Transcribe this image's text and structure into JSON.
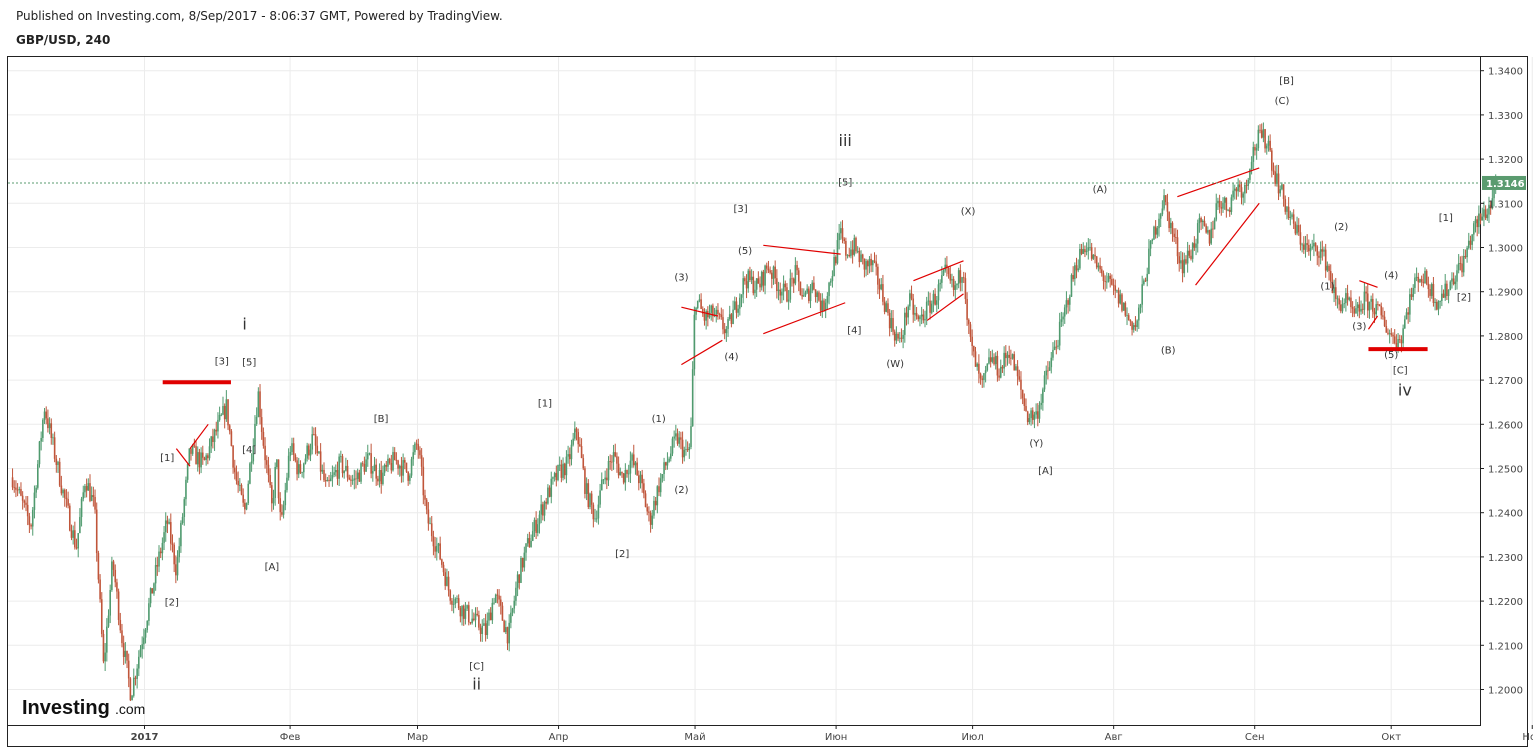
{
  "header": {
    "published": "Published on Investing.com, 8/Sep/2017 - 8:06:37 GMT, Powered by TradingView.",
    "symbol": "GBP/USD, 240"
  },
  "logo": {
    "main": "Investing",
    "suffix": ".com"
  },
  "colors": {
    "up": "#4f9a6e",
    "down": "#c0553a",
    "annotation": "#e00000",
    "last_price_bg": "#5a9b6f"
  },
  "chart_data": {
    "type": "candlestick",
    "timeframe": "240",
    "ylim": [
      1.191,
      1.3415
    ],
    "y_ticks": [
      1.2,
      1.21,
      1.22,
      1.23,
      1.24,
      1.25,
      1.26,
      1.27,
      1.28,
      1.29,
      1.3,
      1.31,
      1.32,
      1.33,
      1.34
    ],
    "x_ticks": [
      {
        "label": "2017",
        "day": 30
      },
      {
        "label": "Фев",
        "day": 62
      },
      {
        "label": "Мар",
        "day": 90
      },
      {
        "label": "Апр",
        "day": 121
      },
      {
        "label": "Май",
        "day": 151
      },
      {
        "label": "Июн",
        "day": 182
      },
      {
        "label": "Июл",
        "day": 212
      },
      {
        "label": "Авг",
        "day": 243
      },
      {
        "label": "Сен",
        "day": 274
      },
      {
        "label": "Окт",
        "day": 304
      },
      {
        "label": "Ноя",
        "day": 335
      }
    ],
    "last_price": 1.3146,
    "price_path": [
      [
        1,
        1.248
      ],
      [
        5,
        1.237
      ],
      [
        8,
        1.264
      ],
      [
        12,
        1.245
      ],
      [
        15,
        1.232
      ],
      [
        17,
        1.248
      ],
      [
        19,
        1.241
      ],
      [
        21,
        1.205
      ],
      [
        23,
        1.229
      ],
      [
        25,
        1.212
      ],
      [
        27,
        1.199
      ],
      [
        30,
        1.214
      ],
      [
        33,
        1.229
      ],
      [
        35,
        1.238
      ],
      [
        37,
        1.227
      ],
      [
        40,
        1.254
      ],
      [
        43,
        1.251
      ],
      [
        46,
        1.259
      ],
      [
        48,
        1.264
      ],
      [
        50,
        1.248
      ],
      [
        52,
        1.24
      ],
      [
        55,
        1.267
      ],
      [
        56,
        1.257
      ],
      [
        58,
        1.241
      ],
      [
        59,
        1.252
      ],
      [
        60,
        1.236
      ],
      [
        62,
        1.255
      ],
      [
        64,
        1.249
      ],
      [
        67,
        1.257
      ],
      [
        70,
        1.245
      ],
      [
        73,
        1.251
      ],
      [
        76,
        1.247
      ],
      [
        79,
        1.252
      ],
      [
        82,
        1.248
      ],
      [
        85,
        1.252
      ],
      [
        88,
        1.249
      ],
      [
        90,
        1.256
      ],
      [
        92,
        1.239
      ],
      [
        95,
        1.23
      ],
      [
        97,
        1.222
      ],
      [
        100,
        1.218
      ],
      [
        103,
        1.215
      ],
      [
        105,
        1.213
      ],
      [
        107,
        1.222
      ],
      [
        109,
        1.215
      ],
      [
        110,
        1.212
      ],
      [
        112,
        1.225
      ],
      [
        114,
        1.232
      ],
      [
        117,
        1.24
      ],
      [
        119,
        1.245
      ],
      [
        121,
        1.249
      ],
      [
        123,
        1.251
      ],
      [
        125,
        1.259
      ],
      [
        127,
        1.245
      ],
      [
        129,
        1.239
      ],
      [
        131,
        1.248
      ],
      [
        133,
        1.253
      ],
      [
        135,
        1.248
      ],
      [
        137,
        1.252
      ],
      [
        139,
        1.247
      ],
      [
        141,
        1.238
      ],
      [
        143,
        1.246
      ],
      [
        145,
        1.252
      ],
      [
        147,
        1.257
      ],
      [
        149,
        1.253
      ],
      [
        150,
        1.255
      ],
      [
        151,
        1.289
      ],
      [
        153,
        1.284
      ],
      [
        155,
        1.285
      ],
      [
        158,
        1.281
      ],
      [
        160,
        1.287
      ],
      [
        162,
        1.293
      ],
      [
        165,
        1.291
      ],
      [
        167,
        1.296
      ],
      [
        169,
        1.292
      ],
      [
        171,
        1.289
      ],
      [
        173,
        1.294
      ],
      [
        175,
        1.288
      ],
      [
        177,
        1.292
      ],
      [
        179,
        1.286
      ],
      [
        181,
        1.294
      ],
      [
        183,
        1.303
      ],
      [
        184,
        1.299
      ],
      [
        186,
        1.3
      ],
      [
        188,
        1.296
      ],
      [
        190,
        1.296
      ],
      [
        192,
        1.29
      ],
      [
        194,
        1.283
      ],
      [
        196,
        1.278
      ],
      [
        198,
        1.288
      ],
      [
        200,
        1.283
      ],
      [
        202,
        1.286
      ],
      [
        204,
        1.289
      ],
      [
        206,
        1.294
      ],
      [
        208,
        1.29
      ],
      [
        210,
        1.296
      ],
      [
        211,
        1.282
      ],
      [
        212,
        1.276
      ],
      [
        214,
        1.268
      ],
      [
        216,
        1.275
      ],
      [
        218,
        1.272
      ],
      [
        220,
        1.277
      ],
      [
        222,
        1.27
      ],
      [
        224,
        1.262
      ],
      [
        226,
        1.262
      ],
      [
        228,
        1.27
      ],
      [
        230,
        1.277
      ],
      [
        232,
        1.284
      ],
      [
        233,
        1.289
      ],
      [
        235,
        1.297
      ],
      [
        237,
        1.301
      ],
      [
        239,
        1.296
      ],
      [
        241,
        1.293
      ],
      [
        243,
        1.29
      ],
      [
        245,
        1.287
      ],
      [
        246,
        1.284
      ],
      [
        248,
        1.282
      ],
      [
        250,
        1.294
      ],
      [
        252,
        1.304
      ],
      [
        254,
        1.311
      ],
      [
        256,
        1.303
      ],
      [
        258,
        1.296
      ],
      [
        260,
        1.299
      ],
      [
        262,
        1.305
      ],
      [
        264,
        1.302
      ],
      [
        266,
        1.311
      ],
      [
        268,
        1.309
      ],
      [
        270,
        1.314
      ],
      [
        272,
        1.313
      ],
      [
        273,
        1.32
      ],
      [
        275,
        1.325
      ],
      [
        277,
        1.324
      ],
      [
        278,
        1.318
      ],
      [
        280,
        1.312
      ],
      [
        282,
        1.306
      ],
      [
        284,
        1.302
      ],
      [
        286,
        1.299
      ],
      [
        288,
        1.3
      ],
      [
        290,
        1.296
      ],
      [
        292,
        1.287
      ],
      [
        294,
        1.288
      ],
      [
        296,
        1.284
      ],
      [
        298,
        1.288
      ],
      [
        300,
        1.287
      ],
      [
        302,
        1.284
      ],
      [
        304,
        1.28
      ],
      [
        306,
        1.279
      ],
      [
        308,
        1.288
      ],
      [
        310,
        1.294
      ],
      [
        312,
        1.292
      ],
      [
        314,
        1.288
      ],
      [
        316,
        1.29
      ],
      [
        318,
        1.294
      ],
      [
        320,
        1.297
      ],
      [
        322,
        1.304
      ],
      [
        324,
        1.307
      ],
      [
        326,
        1.31
      ],
      [
        327,
        1.3146
      ]
    ],
    "annotations": [
      {
        "text": "i",
        "day": 52,
        "price": 1.2815,
        "size": "large"
      },
      {
        "text": "[3]",
        "day": 47,
        "price": 1.2735
      },
      {
        "text": "[5]",
        "day": 53,
        "price": 1.2733
      },
      {
        "text": "[1]",
        "day": 35,
        "price": 1.2517
      },
      {
        "text": "[4]",
        "day": 53,
        "price": 1.2535
      },
      {
        "text": "[2]",
        "day": 36,
        "price": 1.219
      },
      {
        "text": "[A]",
        "day": 58,
        "price": 1.227
      },
      {
        "text": "[B]",
        "day": 82,
        "price": 1.2605
      },
      {
        "text": "[C]",
        "day": 103,
        "price": 1.2045
      },
      {
        "text": "ii",
        "day": 103,
        "price": 1.2,
        "size": "large"
      },
      {
        "text": "[1]",
        "day": 118,
        "price": 1.264
      },
      {
        "text": "[2]",
        "day": 135,
        "price": 1.23
      },
      {
        "text": "(1)",
        "day": 143,
        "price": 1.2605
      },
      {
        "text": "(2)",
        "day": 148,
        "price": 1.2445
      },
      {
        "text": "(3)",
        "day": 148,
        "price": 1.2925
      },
      {
        "text": "(4)",
        "day": 159,
        "price": 1.2745
      },
      {
        "text": "(5)",
        "day": 162,
        "price": 1.2985
      },
      {
        "text": "[3]",
        "day": 161,
        "price": 1.308
      },
      {
        "text": "[4]",
        "day": 186,
        "price": 1.2805
      },
      {
        "text": "[5]",
        "day": 184,
        "price": 1.314
      },
      {
        "text": "iii",
        "day": 184,
        "price": 1.323,
        "size": "large"
      },
      {
        "text": "(W)",
        "day": 195,
        "price": 1.273
      },
      {
        "text": "(X)",
        "day": 211,
        "price": 1.3075
      },
      {
        "text": "(Y)",
        "day": 226,
        "price": 1.255
      },
      {
        "text": "[A]",
        "day": 228,
        "price": 1.2488
      },
      {
        "text": "(A)",
        "day": 240,
        "price": 1.3125
      },
      {
        "text": "(B)",
        "day": 255,
        "price": 1.276
      },
      {
        "text": "[B]",
        "day": 281,
        "price": 1.337
      },
      {
        "text": "(C)",
        "day": 280,
        "price": 1.3325
      },
      {
        "text": "(2)",
        "day": 293,
        "price": 1.304
      },
      {
        "text": "(1)",
        "day": 290,
        "price": 1.2905
      },
      {
        "text": "(3)",
        "day": 297,
        "price": 1.2815
      },
      {
        "text": "(4)",
        "day": 304,
        "price": 1.293
      },
      {
        "text": "(5)",
        "day": 304,
        "price": 1.275
      },
      {
        "text": "[C]",
        "day": 306,
        "price": 1.2715
      },
      {
        "text": "iv",
        "day": 307,
        "price": 1.2665,
        "size": "large"
      },
      {
        "text": "[1]",
        "day": 316,
        "price": 1.306
      },
      {
        "text": "[2]",
        "day": 320,
        "price": 1.288
      }
    ],
    "trendlines": [
      {
        "from": [
          37,
          1.2545
        ],
        "to": [
          40,
          1.2505
        ]
      },
      {
        "from": [
          40,
          1.2545
        ],
        "to": [
          44,
          1.26
        ]
      },
      {
        "from": [
          148,
          1.2865
        ],
        "to": [
          156,
          1.2845
        ]
      },
      {
        "from": [
          148,
          1.2735
        ],
        "to": [
          157,
          1.279
        ]
      },
      {
        "from": [
          166,
          1.3005
        ],
        "to": [
          183,
          1.2985
        ]
      },
      {
        "from": [
          166,
          1.2805
        ],
        "to": [
          184,
          1.2875
        ]
      },
      {
        "from": [
          199,
          1.2925
        ],
        "to": [
          210,
          1.297
        ]
      },
      {
        "from": [
          202,
          1.2835
        ],
        "to": [
          210,
          1.2895
        ]
      },
      {
        "from": [
          257,
          1.3115
        ],
        "to": [
          275,
          1.318
        ]
      },
      {
        "from": [
          261,
          1.2915
        ],
        "to": [
          275,
          1.31
        ]
      },
      {
        "from": [
          297,
          1.2925
        ],
        "to": [
          301,
          1.291
        ]
      },
      {
        "from": [
          299,
          1.2815
        ],
        "to": [
          301,
          1.2845
        ]
      }
    ],
    "hlines": [
      {
        "from": [
          34,
          1.2695
        ],
        "to": [
          49,
          1.2695
        ]
      },
      {
        "from": [
          299,
          1.277
        ],
        "to": [
          312,
          1.277
        ]
      }
    ]
  }
}
